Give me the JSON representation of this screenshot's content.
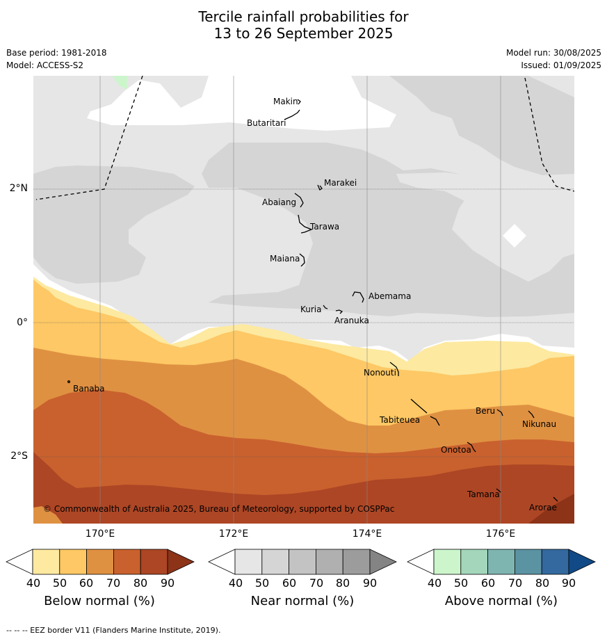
{
  "title_line1": "Tercile rainfall probabilities for",
  "title_line2": "13 to 26 September 2025",
  "meta_left": [
    "Base period: 1981-2018",
    "Model: ACCESS-S2"
  ],
  "meta_right": [
    "Model run: 30/08/2025",
    "Issued: 01/09/2025"
  ],
  "copyright": "© Commonwealth of Australia 2025, Bureau of Meteorology, supported by COSPPac",
  "lon_labels": [
    "170°E",
    "172°E",
    "174°E",
    "176°E"
  ],
  "lat_labels": [
    "2°N",
    "0°",
    "2°S"
  ],
  "places": [
    "Makin",
    "Butaritari",
    "Marakei",
    "Abaiang",
    "Tarawa",
    "Maiana",
    "Abemama",
    "Kuria",
    "Aranuka",
    "Nonouti",
    "Banaba",
    "Tabiteuea",
    "Beru",
    "Nikunau",
    "Onotoa",
    "Tamana",
    "Arorae"
  ],
  "colorbars": [
    {
      "label": "Below normal (%)",
      "ticks": [
        "40",
        "50",
        "60",
        "70",
        "80",
        "90"
      ],
      "colors": [
        "#fde9a0",
        "#fdc865",
        "#df9142",
        "#c9612e",
        "#ad4625",
        "#8c3318"
      ]
    },
    {
      "label": "Near normal (%)",
      "ticks": [
        "40",
        "50",
        "60",
        "70",
        "80",
        "90"
      ],
      "colors": [
        "#e6e6e6",
        "#d5d5d5",
        "#c3c3c3",
        "#b0b0b0",
        "#9c9c9c",
        "#848484"
      ]
    },
    {
      "label": "Above normal (%)",
      "ticks": [
        "40",
        "50",
        "60",
        "70",
        "80",
        "90"
      ],
      "colors": [
        "#ccf5cc",
        "#a3d6bb",
        "#7fb5b0",
        "#5b93a3",
        "#33699e",
        "#114a86"
      ]
    }
  ],
  "footer": "--  --  -- EEZ border V11 (Flanders Marine Institute, 2019)."
}
